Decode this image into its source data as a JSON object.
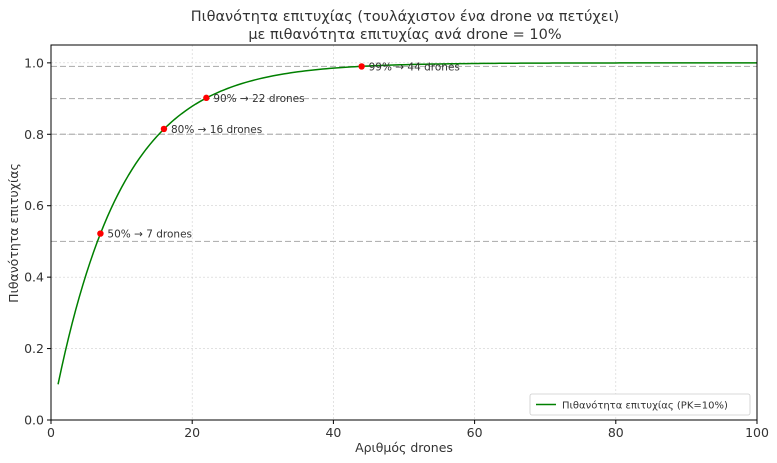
{
  "chart_data": {
    "type": "line",
    "title": "Πιθανότητα επιτυχίας (τουλάχιστον ένα drone να πετύχει)",
    "subtitle": "με πιθανότητα επιτυχίας ανά drone = 10%",
    "xlabel": "Αριθμός drones",
    "ylabel": "Πιθανότητα επιτυχίας",
    "xlim": [
      0,
      100
    ],
    "ylim": [
      0.0,
      1.05
    ],
    "xticks": [
      0,
      20,
      40,
      60,
      80,
      100
    ],
    "xtick_labels": [
      "0",
      "20",
      "40",
      "60",
      "80",
      "100"
    ],
    "yticks": [
      0.0,
      0.2,
      0.4,
      0.6,
      0.8,
      1.0
    ],
    "ytick_labels": [
      "0.0",
      "0.2",
      "0.4",
      "0.6",
      "0.8",
      "1.0"
    ],
    "grid": true,
    "legend_position": "lower-right",
    "series": [
      {
        "name": "Πιθανότητα επιτυχίας (PK=10%)",
        "color": "#008000",
        "x_start": 1,
        "x_end": 100,
        "formula": "1 - 0.9^n",
        "per_drone_probability": 0.1
      }
    ],
    "reference_lines": [
      0.5,
      0.8,
      0.9,
      0.99
    ],
    "points": [
      {
        "x": 7,
        "y": 0.522,
        "label": "50% → 7 drones"
      },
      {
        "x": 16,
        "y": 0.815,
        "label": "80% → 16 drones"
      },
      {
        "x": 22,
        "y": 0.902,
        "label": "90% → 22 drones"
      },
      {
        "x": 44,
        "y": 0.99,
        "label": "99% → 44 drones"
      }
    ],
    "colors": {
      "line": "#008000",
      "point": "#ff0000",
      "reference": "#b3b3b3",
      "grid": "#d0d0d0"
    }
  }
}
